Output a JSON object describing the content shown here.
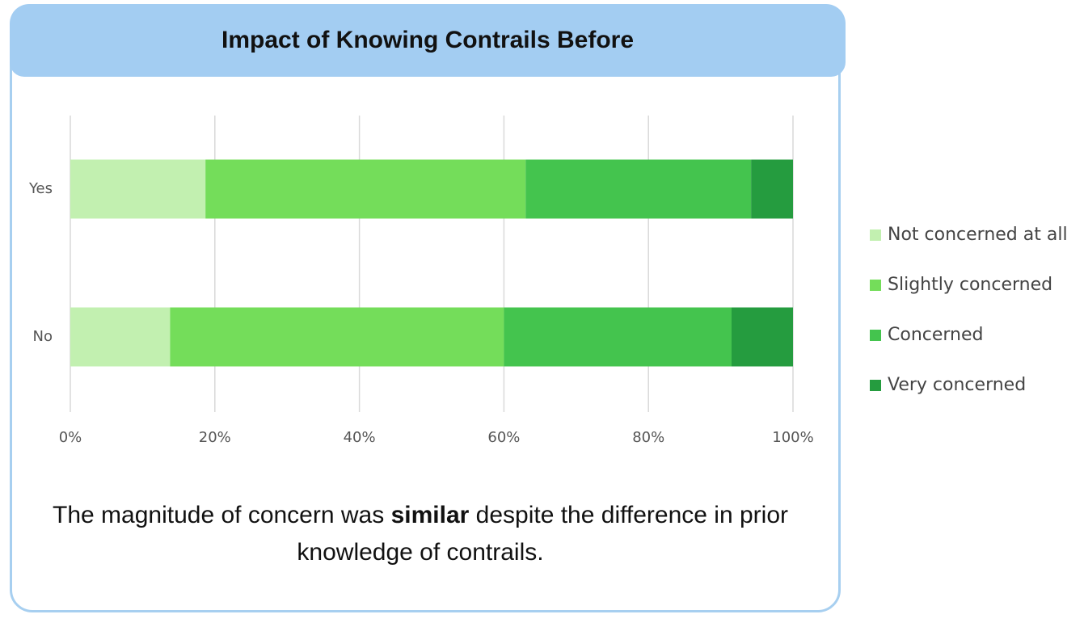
{
  "chart_data": {
    "type": "stacked-barh",
    "title": "Impact of Knowing Contrails Before",
    "categories": [
      "Yes",
      "No"
    ],
    "series": [
      {
        "name": "Not concerned at all",
        "color": "#c2f0b0",
        "values": [
          18.7,
          13.8
        ]
      },
      {
        "name": "Slightly concerned",
        "color": "#74dd5a",
        "values": [
          44.3,
          46.2
        ]
      },
      {
        "name": "Concerned",
        "color": "#44c44e",
        "values": [
          31.2,
          31.5
        ]
      },
      {
        "name": "Very concerned",
        "color": "#259c3f",
        "values": [
          5.8,
          8.5
        ]
      }
    ],
    "xlim": [
      0,
      100
    ],
    "xticks": [
      {
        "value": 0,
        "label": "0%"
      },
      {
        "value": 20,
        "label": "20%"
      },
      {
        "value": 40,
        "label": "40%"
      },
      {
        "value": 60,
        "label": "60%"
      },
      {
        "value": 80,
        "label": "80%"
      },
      {
        "value": 100,
        "label": "100%"
      }
    ],
    "grid": true,
    "legend": "right",
    "caption": {
      "before": "The magnitude of concern was ",
      "emphasis": "similar",
      "after": " despite the difference in prior knowledge of contrails."
    }
  }
}
